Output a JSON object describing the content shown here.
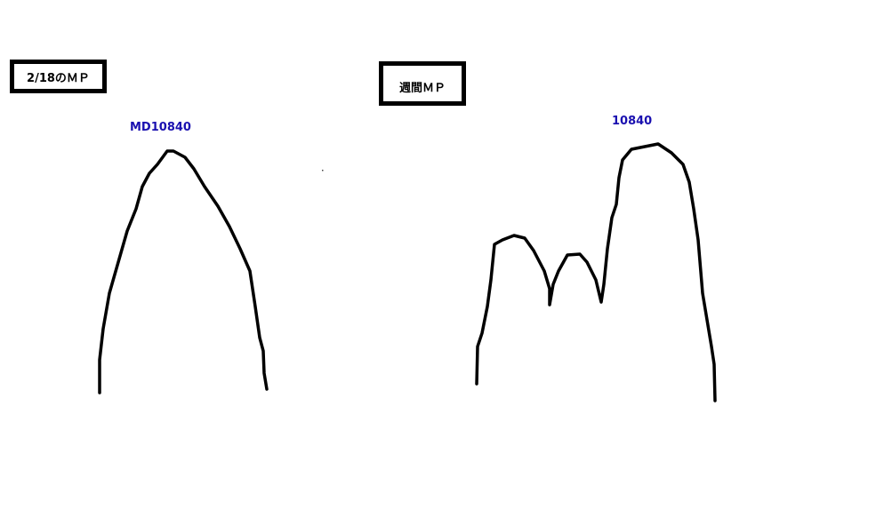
{
  "left_panel": {
    "title": "2/18のＭＰ",
    "peak_label": "MD10840"
  },
  "right_panel": {
    "title": "週間ＭＰ",
    "peak_label": "10840"
  },
  "colors": {
    "stroke": "#000000",
    "label": "#1a10b0"
  }
}
